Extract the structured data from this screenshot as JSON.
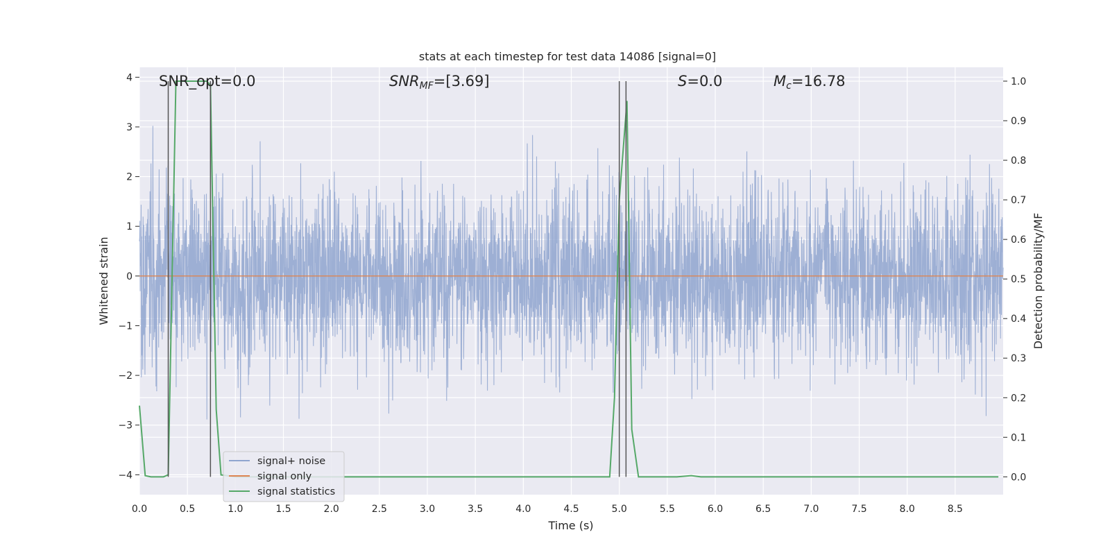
{
  "chart_data": {
    "type": "line",
    "title": "stats at each timestep for test data 14086 [signal=0]",
    "xlabel": "Time (s)",
    "ylabel": "Whitened strain",
    "y2label": "Detection probability/MF",
    "xlim": [
      0,
      9
    ],
    "ylim": [
      -4.4,
      4.2
    ],
    "y2lim": [
      -0.045,
      1.035
    ],
    "xticks": [
      0.0,
      0.5,
      1.0,
      1.5,
      2.0,
      2.5,
      3.0,
      3.5,
      4.0,
      4.5,
      5.0,
      5.5,
      6.0,
      6.5,
      7.0,
      7.5,
      8.0,
      8.5
    ],
    "xtick_labels": [
      "0.0",
      "0.5",
      "1.0",
      "1.5",
      "2.0",
      "2.5",
      "3.0",
      "3.5",
      "4.0",
      "4.5",
      "5.0",
      "5.5",
      "6.0",
      "6.5",
      "7.0",
      "7.5",
      "8.0",
      "8.5"
    ],
    "yticks": [
      4,
      3,
      2,
      1,
      0,
      -1,
      -2,
      -3,
      -4
    ],
    "ytick_labels": [
      "4",
      "3",
      "2",
      "1",
      "0",
      "−1",
      "−2",
      "−3",
      "−4"
    ],
    "y2ticks": [
      1.0,
      0.9,
      0.8,
      0.7,
      0.6,
      0.5,
      0.4,
      0.3,
      0.2,
      0.1,
      0.0
    ],
    "y2tick_labels": [
      "1.0",
      "0.9",
      "0.8",
      "0.7",
      "0.6",
      "0.5",
      "0.4",
      "0.3",
      "0.2",
      "0.1",
      "0.0"
    ],
    "grid": true,
    "legend_placement": "lower-left",
    "annotations": {
      "snr_opt": "SNR_opt=0.0",
      "snr_mf_sym": "SNR",
      "snr_mf_sub": "MF",
      "snr_mf_val": "=[3.69]",
      "s_sym": "S",
      "s_val": "=0.0",
      "mc_sym": "M",
      "mc_sub": "c",
      "mc_val": "=16.78"
    },
    "series": [
      {
        "name": "signal+ noise",
        "color": "#8fa5cf",
        "axis": "left",
        "kind": "noise",
        "noise_std": 0.9,
        "duration_s": 9.0
      },
      {
        "name": "signal only",
        "color": "#dd8452",
        "axis": "left",
        "x": [
          0,
          9
        ],
        "y": [
          0,
          0
        ]
      },
      {
        "name": "signal statistics",
        "color": "#55a868",
        "axis": "right",
        "x": [
          0.0,
          0.06,
          0.12,
          0.25,
          0.3,
          0.38,
          0.5,
          0.6,
          0.7,
          0.74,
          0.8,
          0.85,
          1.0,
          2.0,
          3.0,
          4.0,
          4.9,
          4.95,
          5.0,
          5.08,
          5.13,
          5.2,
          5.3,
          5.6,
          5.75,
          5.85,
          6.0,
          7.0,
          8.0,
          8.95
        ],
        "y": [
          0.18,
          0.003,
          0.0,
          0.0,
          0.005,
          1.0,
          1.0,
          1.0,
          1.0,
          0.99,
          0.17,
          0.005,
          0.0,
          0.0,
          0.0,
          0.0,
          0.0,
          0.2,
          0.7,
          0.95,
          0.12,
          0.0,
          0.0,
          0.0,
          0.003,
          0.0,
          0.0,
          0.0,
          0.0,
          0.0
        ]
      }
    ],
    "vlines": [
      {
        "x": 0.3,
        "color": "#555555",
        "y2_top": 1.0
      },
      {
        "x": 0.74,
        "color": "#555555",
        "y2_top": 1.0
      },
      {
        "x": 5.0,
        "color": "#555555",
        "y2_top": 1.0
      },
      {
        "x": 5.07,
        "color": "#555555",
        "y2_top": 1.0
      }
    ]
  }
}
